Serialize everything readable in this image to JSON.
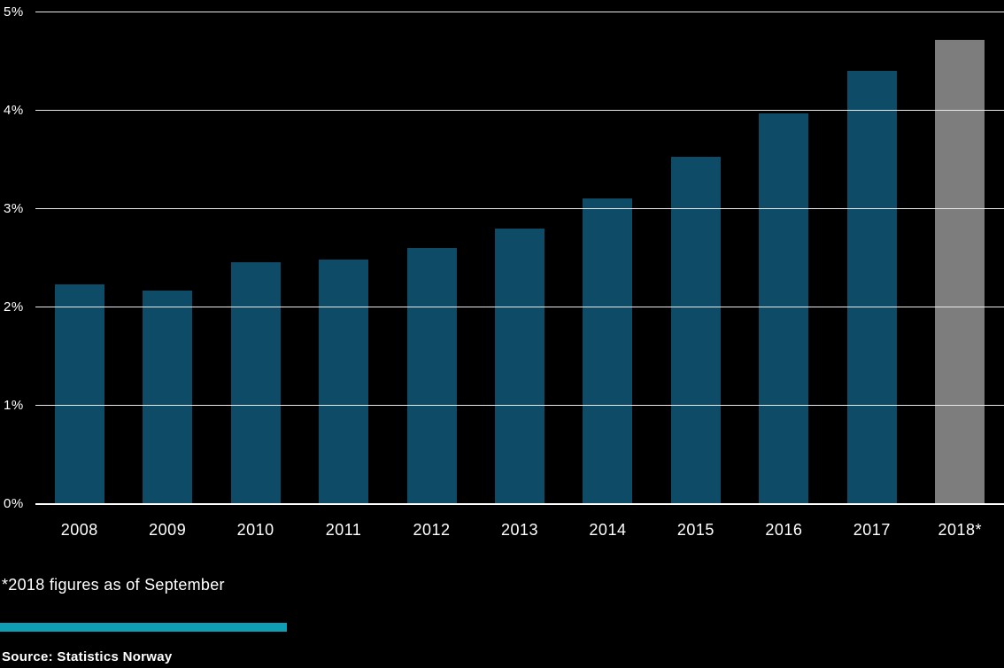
{
  "chart_data": {
    "type": "bar",
    "categories": [
      "2008",
      "2009",
      "2010",
      "2011",
      "2012",
      "2013",
      "2014",
      "2015",
      "2016",
      "2017",
      "2018*"
    ],
    "values": [
      2.23,
      2.17,
      2.46,
      2.49,
      2.6,
      2.8,
      3.11,
      3.53,
      3.97,
      4.41,
      4.72
    ],
    "bar_colors": [
      "#0d4b66",
      "#0d4b66",
      "#0d4b66",
      "#0d4b66",
      "#0d4b66",
      "#0d4b66",
      "#0d4b66",
      "#0d4b66",
      "#0d4b66",
      "#0d4b66",
      "#7d7d7d"
    ],
    "title": "",
    "xlabel": "",
    "ylabel": "",
    "ylim": [
      0,
      5
    ],
    "yticks": [
      "0%",
      "1%",
      "2%",
      "3%",
      "4%",
      "5%"
    ],
    "grid": true,
    "legend": false,
    "background_color": "#000000",
    "gridline_color": "#e9e9e9",
    "text_color": "#ffffff"
  },
  "footer": {
    "footnote": "*2018 figures as of September",
    "accent_color": "#0f9fb5",
    "source": "Source: Statistics Norway"
  }
}
